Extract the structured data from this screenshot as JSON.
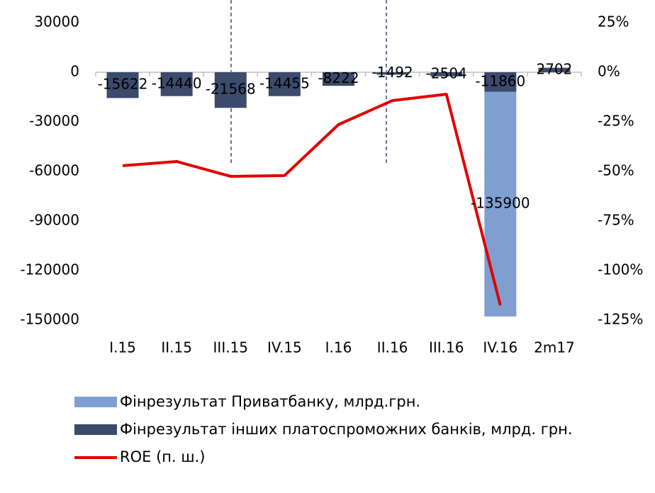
{
  "chart_data": {
    "type": "bar",
    "categories": [
      "I.15",
      "II.15",
      "III.15",
      "IV.15",
      "I.16",
      "II.16",
      "III.16",
      "IV.16",
      "2m17"
    ],
    "series": [
      {
        "name": "Фінрезультат Приватбанку, млрд.грн.",
        "color": "#7f9fd0",
        "values": [
          null,
          null,
          null,
          null,
          null,
          null,
          null,
          -135900,
          null
        ]
      },
      {
        "name": "Фінрезультат інших платоспроможних банків, млрд. грн.",
        "color": "#3c4a6b",
        "values": [
          -15622,
          -14440,
          -21568,
          -14455,
          -8222,
          -1492,
          -2504,
          -11860,
          2702
        ]
      },
      {
        "name": "ROE (п. ш.)",
        "color": "#e00000",
        "type": "line",
        "axis": "y2",
        "values": [
          -47.1,
          -45,
          -52.5,
          -52.1,
          -26.4,
          -14.3,
          -11.1,
          -117.5,
          null
        ]
      }
    ],
    "stacked": true,
    "ylim": [
      -150000,
      43700
    ],
    "yticks": [
      30000,
      0,
      -30000,
      -60000,
      -90000,
      -120000,
      -150000
    ],
    "y2lim": [
      -125,
      36.4
    ],
    "y2ticks": [
      {
        "value": 25,
        "label": "25%"
      },
      {
        "value": 0,
        "label": "0%"
      },
      {
        "value": -25,
        "label": "-25%"
      },
      {
        "value": -50,
        "label": "-50%"
      },
      {
        "value": -75,
        "label": "-75%"
      },
      {
        "value": -100,
        "label": "-100%"
      },
      {
        "value": -125,
        "label": "-125%"
      }
    ],
    "legend": "bottom"
  }
}
